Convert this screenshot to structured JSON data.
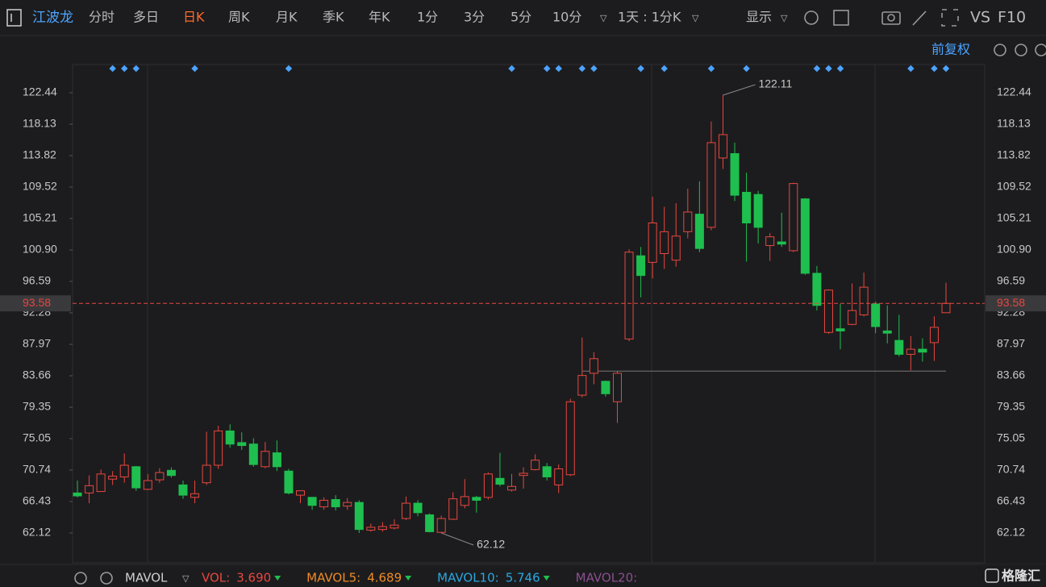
{
  "toolbar": {
    "stock_name": "江波龙",
    "tabs": [
      "分时",
      "多日",
      "日K",
      "周K",
      "月K",
      "季K",
      "年K",
      "1分",
      "3分",
      "5分",
      "10分"
    ],
    "active_tab": "日K",
    "interval": "1天 : 1分K",
    "display": "显示",
    "vs": "VS",
    "f10": "F10",
    "adjust": "前复权"
  },
  "chart_data": {
    "type": "candlestick",
    "series": [
      {
        "open": [
          67.6,
          67.6,
          67.8,
          69.5,
          69.8,
          71.2,
          68.1,
          69.4,
          70.7,
          68.7,
          67.0,
          69.0,
          71.4,
          76.1,
          74.5,
          74.3,
          71.2,
          73.1,
          70.6,
          67.3,
          67.0,
          65.7,
          66.7,
          65.8,
          66.3,
          62.5,
          62.6,
          62.8,
          64.1,
          66.2,
          64.6,
          62.2,
          64.0,
          65.9,
          67.0,
          67.0,
          69.6,
          68.0,
          70.0,
          70.8,
          71.2,
          68.7,
          70.1,
          81.0,
          84.0,
          82.9,
          80.1,
          88.7,
          100.1,
          99.2,
          100.4,
          99.5,
          103.4,
          105.8,
          104.0,
          113.5,
          114.1,
          108.8,
          108.5,
          101.5,
          102.0,
          100.8,
          107.9,
          97.7,
          89.6,
          90.1,
          90.7,
          92.0,
          93.5,
          89.8,
          88.5,
          86.6,
          87.3,
          88.2,
          92.3
        ],
        "close": [
          67.2,
          68.6,
          70.2,
          69.9,
          71.4,
          68.3,
          69.3,
          70.4,
          70.0,
          67.3,
          67.5,
          71.4,
          76.1,
          74.3,
          74.1,
          71.5,
          73.3,
          71.2,
          67.6,
          67.9,
          65.9,
          66.6,
          65.7,
          66.3,
          62.6,
          62.9,
          63.0,
          63.2,
          66.2,
          64.9,
          62.3,
          64.1,
          66.8,
          67.1,
          66.6,
          70.2,
          68.8,
          68.5,
          70.3,
          72.1,
          69.8,
          70.9,
          80.1,
          83.7,
          86.0,
          81.2,
          84.0,
          100.6,
          97.4,
          104.6,
          103.4,
          102.8,
          106.1,
          101.1,
          115.6,
          116.7,
          108.4,
          104.6,
          104.0,
          102.7,
          101.7,
          110.0,
          97.7,
          93.3,
          95.4,
          89.8,
          92.6,
          95.8,
          90.4,
          89.5,
          86.6,
          87.3,
          86.9,
          90.3,
          93.58
        ],
        "high": [
          69.3,
          70.0,
          70.8,
          70.6,
          73.0,
          71.3,
          70.2,
          71.0,
          71.1,
          69.3,
          69.3,
          76.0,
          76.8,
          77.0,
          75.9,
          75.1,
          74.6,
          74.8,
          70.9,
          67.9,
          67.0,
          67.0,
          67.3,
          66.9,
          66.6,
          63.4,
          63.6,
          64.0,
          67.1,
          66.6,
          64.8,
          64.5,
          67.7,
          69.5,
          67.2,
          70.4,
          73.1,
          70.2,
          71.1,
          72.9,
          71.7,
          71.5,
          80.5,
          88.9,
          86.9,
          83.0,
          84.3,
          101.0,
          101.3,
          108.2,
          106.8,
          107.3,
          109.3,
          110.3,
          118.5,
          122.11,
          115.6,
          111.5,
          109.0,
          103.2,
          106.0,
          110.1,
          108.0,
          98.7,
          95.5,
          93.5,
          96.3,
          97.8,
          93.8,
          93.3,
          92.0,
          89.1,
          88.8,
          91.8,
          96.4
        ],
        "low": [
          67.0,
          66.2,
          67.8,
          68.7,
          69.0,
          67.9,
          68.0,
          69.0,
          69.7,
          66.8,
          66.2,
          68.7,
          70.9,
          73.8,
          73.5,
          71.2,
          71.0,
          70.6,
          67.4,
          66.2,
          65.3,
          65.3,
          65.2,
          65.3,
          62.12,
          62.3,
          62.3,
          62.6,
          63.9,
          64.4,
          62.2,
          62.1,
          63.9,
          65.5,
          64.9,
          66.7,
          68.5,
          67.8,
          68.2,
          70.7,
          69.3,
          67.6,
          69.9,
          80.7,
          82.5,
          80.8,
          77.2,
          88.4,
          94.4,
          97.0,
          98.3,
          98.6,
          102.5,
          100.6,
          103.6,
          112.0,
          107.6,
          99.3,
          101.8,
          99.4,
          101.3,
          100.6,
          97.5,
          92.6,
          89.4,
          87.3,
          90.6,
          91.8,
          89.5,
          88.1,
          86.3,
          84.4,
          85.6,
          85.7,
          92.3
        ]
      }
    ],
    "up_color": "#e8473f",
    "down_color": "#1fbf4f",
    "ylim": [
      58.03,
      126.31
    ],
    "yticks": [
      62.12,
      66.43,
      70.74,
      75.05,
      79.35,
      83.66,
      87.97,
      92.28,
      96.59,
      {
        "value": 100.9,
        "label": "100.90"
      },
      105.21,
      109.52,
      113.82,
      118.13,
      122.44
    ],
    "annotations": [
      122.11,
      62.12
    ],
    "last_price": 93.58,
    "reference_line": 84.3
  },
  "indicator": {
    "name": "MAVOL",
    "items": [
      {
        "name": "VOL:",
        "value": {
          "value": 3.69,
          "label": "3.690"
        },
        "color": "#e8473f"
      },
      {
        "name": "MAVOL5:",
        "value": 4.689,
        "color": "#f08a24"
      },
      {
        "name": "MAVOL10:",
        "value": 5.746,
        "color": "#2aa7e0"
      },
      {
        "name": "MAVOL20:",
        "color": "#8a4f8f"
      }
    ]
  },
  "watermark": "格隆汇"
}
